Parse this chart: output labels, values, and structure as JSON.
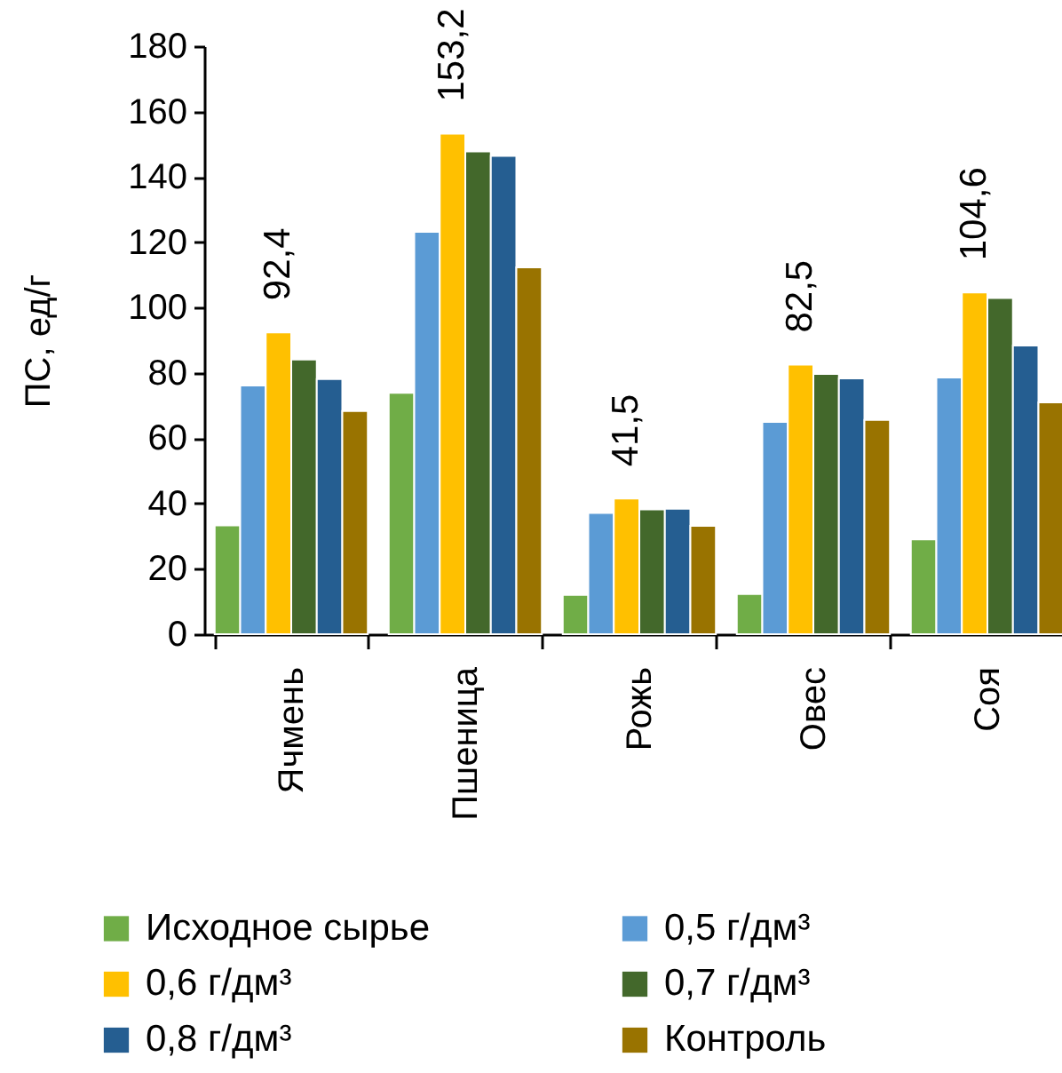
{
  "chart_data": {
    "type": "bar",
    "categories": [
      "Ячмень",
      "Пшеница",
      "Рожь",
      "Овес",
      "Соя"
    ],
    "ylabel": "ПС, ед/г",
    "ylim": [
      0,
      180
    ],
    "yticks": [
      0,
      20,
      40,
      60,
      80,
      100,
      120,
      140,
      160,
      180
    ],
    "legend": "bottom",
    "series": [
      {
        "name": "Исходное сырье",
        "color": "#70ad47",
        "values": [
          33.3,
          73.9,
          12.0,
          12.3,
          29.0
        ]
      },
      {
        "name": "0,5 г/дм³",
        "color": "#5b9bd5",
        "values": [
          76.1,
          123.2,
          37.1,
          65.0,
          78.6
        ]
      },
      {
        "name": "0,6 г/дм³",
        "color": "#ffc000",
        "values": [
          92.4,
          153.2,
          41.5,
          82.5,
          104.6
        ],
        "value_labels": [
          "92,4",
          "153,2",
          "41,5",
          "82,5",
          "104,6"
        ]
      },
      {
        "name": "0,7 г/дм³",
        "color": "#43682b",
        "values": [
          84.1,
          147.8,
          38.2,
          79.7,
          102.9
        ]
      },
      {
        "name": "0,8 г/дм³",
        "color": "#255e91",
        "values": [
          78.1,
          146.4,
          38.4,
          78.3,
          88.4
        ]
      },
      {
        "name": "Контроль",
        "color": "#997300",
        "values": [
          68.3,
          112.3,
          33.2,
          65.6,
          71.0
        ]
      }
    ]
  }
}
